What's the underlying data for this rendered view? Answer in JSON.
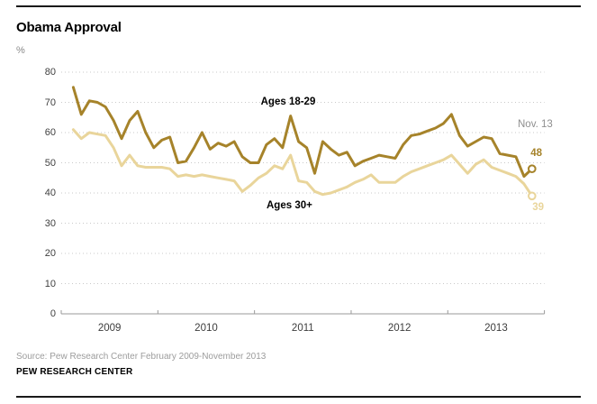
{
  "page": {
    "title": "Obama Approval",
    "source_line": "Source: Pew Research Center February 2009-November 2013",
    "brand": "PEW RESEARCH CENTER"
  },
  "chart_data": {
    "type": "line",
    "title": "Obama Approval",
    "unit": "%",
    "x_axis": "monthly, Feb 2009 - Nov 2013",
    "x_start": "Feb 2009",
    "x_end": "Nov 2013",
    "ylim": [
      0,
      80
    ],
    "yticks": [
      0,
      10,
      20,
      30,
      40,
      50,
      60,
      70,
      80
    ],
    "year_labels": [
      "2009",
      "2010",
      "2011",
      "2012",
      "2013"
    ],
    "grid": "dotted horizontal gridlines, legend as inline labels",
    "annotation": {
      "date_label": "Nov. 13",
      "end_value_18_29": 48,
      "end_value_30_plus": 39
    },
    "series": [
      {
        "name": "Ages 18-29",
        "color": "#a6832a",
        "values": [
          75,
          66,
          70.5,
          70,
          68.5,
          64,
          58,
          64,
          67,
          60,
          55,
          57.5,
          58.5,
          50,
          50.5,
          55,
          60,
          54.5,
          56.5,
          55.5,
          57,
          52,
          50,
          50,
          56,
          58,
          55,
          65.5,
          57,
          55,
          46.5,
          57,
          54.5,
          52.5,
          53.5,
          49,
          50.5,
          51.5,
          52.5,
          52,
          51.5,
          56,
          59,
          59.5,
          60.5,
          61.5,
          63,
          66,
          59,
          55.5,
          57,
          58.5,
          58,
          53,
          52.5,
          52,
          45.5,
          48
        ]
      },
      {
        "name": "Ages 30+",
        "color": "#e9d59b",
        "values": [
          61,
          58,
          60,
          59.5,
          59,
          55,
          49,
          52.5,
          49,
          48.5,
          48.5,
          48.5,
          48,
          45.5,
          46,
          45.5,
          46,
          45.5,
          45,
          44.5,
          44,
          40.5,
          42.5,
          45,
          46.5,
          49,
          48,
          52.5,
          44,
          43.5,
          40.5,
          39.5,
          40,
          41,
          42,
          43.5,
          44.5,
          46,
          43.5,
          43.5,
          43.5,
          45.5,
          47,
          48,
          49,
          50,
          51,
          52.5,
          49.5,
          46.5,
          49.5,
          51,
          48.5,
          47.5,
          46.5,
          45.5,
          43,
          39
        ]
      }
    ]
  }
}
